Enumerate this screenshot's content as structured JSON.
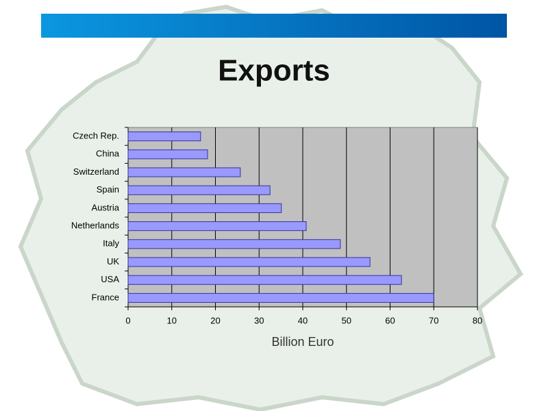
{
  "chart_data": {
    "type": "bar",
    "orientation": "horizontal",
    "title": "Exports",
    "x_label": "Billion Euro",
    "categories": [
      "Czech Rep.",
      "China",
      "Switzerland",
      "Spain",
      "Austria",
      "Netherlands",
      "Italy",
      "UK",
      "USA",
      "France"
    ],
    "values": [
      16.6,
      18.2,
      25.7,
      32.5,
      35.1,
      40.8,
      48.6,
      55.4,
      62.6,
      70.0
    ],
    "color": "#9999ff",
    "xlim": [
      0,
      80
    ],
    "xticks": [
      0,
      10,
      20,
      30,
      40,
      50,
      60,
      70,
      80
    ],
    "grid": true
  }
}
